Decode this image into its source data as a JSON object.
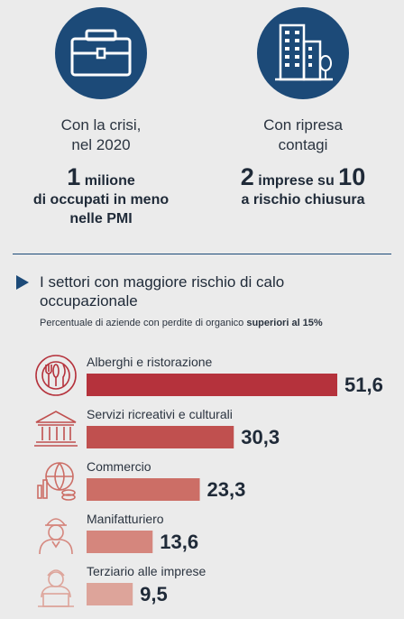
{
  "stats": [
    {
      "icon": "briefcase-icon",
      "caption_1": "Con la crisi,",
      "caption_2": "nel 2020",
      "value_num": "1",
      "value_rest": " milione",
      "value_line_2": "di occupati in meno",
      "value_line_3": "nelle PMI"
    },
    {
      "icon": "buildings-icon",
      "caption_1": "Con ripresa",
      "caption_2": "contagi",
      "value_num": "2",
      "value_mid": " imprese su ",
      "value_num_2": "10",
      "value_line_2": "a rischio chiusura"
    }
  ],
  "section": {
    "title": "I settori con maggiore rischio di calo occupazionale",
    "subtitle_prefix": "Percentuale di aziende con perdite di organico ",
    "subtitle_bold": "superiori al 15%"
  },
  "colors": {
    "accent_blue": "#1c4a78",
    "background": "#ebebeb",
    "bars": [
      "#b5323c",
      "#c0504f",
      "#cc6e66",
      "#d5867d",
      "#dda49a"
    ]
  },
  "chart_data": {
    "type": "bar",
    "orientation": "horizontal",
    "categories": [
      "Alberghi e ristorazione",
      "Servizi ricreativi e culturali",
      "Commercio",
      "Manifatturiero",
      "Terziario alle imprese"
    ],
    "values": [
      51.6,
      30.3,
      23.3,
      13.6,
      9.5
    ],
    "value_labels": [
      "51,6",
      "30,3",
      "23,3",
      "13,6",
      "9,5"
    ],
    "icons": [
      "cutlery-icon",
      "museum-icon",
      "commerce-icon",
      "worker-icon",
      "office-worker-icon"
    ],
    "xlim": [
      0,
      51.6
    ],
    "grid": false,
    "legend": "none"
  }
}
